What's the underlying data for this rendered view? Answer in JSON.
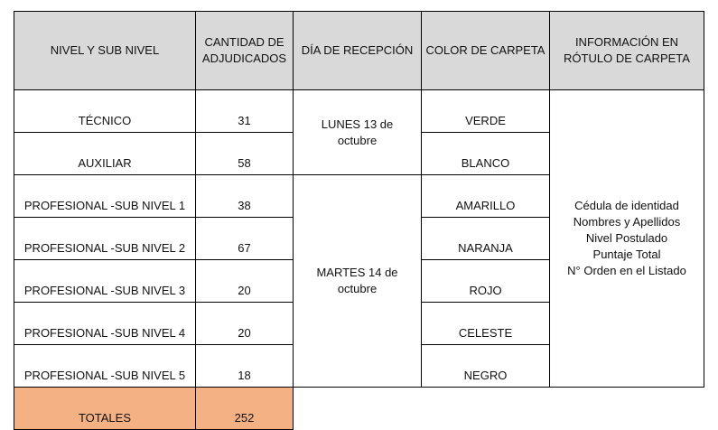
{
  "headers": [
    "NIVEL Y SUB NIVEL",
    "CANTIDAD DE ADJUDICADOS",
    "DÍA DE RECEPCIÓN",
    "COLOR DE CARPETA",
    "INFORMACIÓN EN RÓTULO DE CARPETA"
  ],
  "rows": [
    {
      "nivel": "TÉCNICO",
      "cantidad": "31",
      "color": "VERDE"
    },
    {
      "nivel": "AUXILIAR",
      "cantidad": "58",
      "color": "BLANCO"
    },
    {
      "nivel": "PROFESIONAL -SUB NIVEL 1",
      "cantidad": "38",
      "color": "AMARILLO"
    },
    {
      "nivel": "PROFESIONAL -SUB NIVEL 2",
      "cantidad": "67",
      "color": "NARANJA"
    },
    {
      "nivel": "PROFESIONAL -SUB NIVEL 3",
      "cantidad": "20",
      "color": "ROJO"
    },
    {
      "nivel": "PROFESIONAL -SUB NIVEL 4",
      "cantidad": "20",
      "color": "CELESTE"
    },
    {
      "nivel": "PROFESIONAL -SUB NIVEL 5",
      "cantidad": "18",
      "color": "NEGRO"
    }
  ],
  "days": [
    "LUNES 13 de octubre",
    "MARTES 14 de octubre"
  ],
  "info": [
    "Cédula de identidad",
    "Nombres y Apellidos",
    "Nivel Postulado",
    "Puntaje Total",
    "N° Orden en el Listado"
  ],
  "totals": {
    "label": "TOTALES",
    "value": "252"
  },
  "colors": {
    "header_bg": "#d9d9d9",
    "totals_bg": "#f4b183"
  }
}
